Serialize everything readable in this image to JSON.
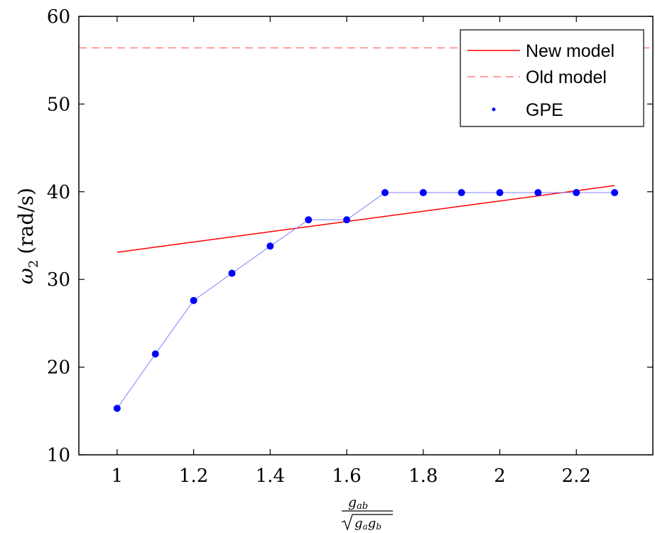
{
  "chart_data": {
    "type": "line",
    "ylabel": "ω2 (rad/s)",
    "xlabel": "gab / sqrt(ga gb)",
    "xlabel_parts": {
      "num": "g",
      "num_sub": "ab",
      "den_a": "g",
      "den_a_sub": "a",
      "den_b": "g",
      "den_b_sub": "b"
    },
    "ylabel_parts": {
      "omega": "ω",
      "sub": "2",
      "unit": "(rad/s)"
    },
    "xlim": [
      0.9,
      2.4
    ],
    "ylim": [
      10,
      60
    ],
    "xticks": [
      1,
      1.2,
      1.4,
      1.6,
      1.8,
      2,
      2.2
    ],
    "xtick_labels": [
      "1",
      "1.2",
      "1.4",
      "1.6",
      "1.8",
      "2",
      "2.2"
    ],
    "yticks": [
      10,
      20,
      30,
      40,
      50,
      60
    ],
    "ytick_labels": [
      "10",
      "20",
      "30",
      "40",
      "50",
      "60"
    ],
    "grid": false,
    "legend_placement": "top-right",
    "series": [
      {
        "name": "New model",
        "style": "solid",
        "color": "#ff0000",
        "x": [
          1.0,
          2.3
        ],
        "y": [
          33.1,
          40.7
        ]
      },
      {
        "name": "Old model",
        "style": "dashed",
        "color": "#ff8080",
        "x": [
          0.9,
          2.4
        ],
        "y": [
          56.4,
          56.4
        ]
      },
      {
        "name": "GPE",
        "style": "markers+line",
        "color": "#0000ff",
        "line_color": "#8080ff",
        "x": [
          1.0,
          1.1,
          1.2,
          1.3,
          1.4,
          1.5,
          1.6,
          1.7,
          1.8,
          1.9,
          2.0,
          2.1,
          2.2,
          2.3
        ],
        "y": [
          15.3,
          21.5,
          27.6,
          30.7,
          33.8,
          36.8,
          36.8,
          39.9,
          39.9,
          39.9,
          39.9,
          39.9,
          39.9,
          39.9
        ]
      }
    ]
  }
}
